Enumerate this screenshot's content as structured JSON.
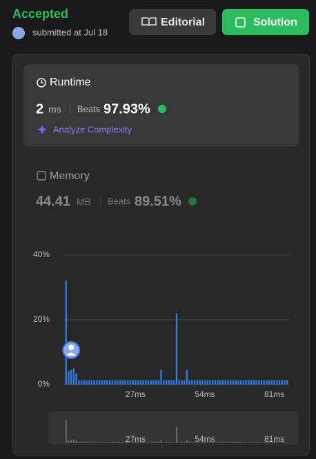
{
  "header": {
    "status": "Accepted",
    "submitted": "submitted at Jul 18",
    "editorial": "Editorial",
    "solution": "Solution"
  },
  "runtime": {
    "title": "Runtime",
    "value": 2,
    "unit": "ms",
    "beats_label": "Beats",
    "beats": "97.93%",
    "analyze": "Analyze Complexity"
  },
  "memory": {
    "title": "Memory",
    "value": 44.41,
    "unit": "MB",
    "beats_label": "Beats",
    "beats": "89.51%"
  },
  "chart_data": {
    "type": "bar",
    "x": [
      0,
      1,
      2,
      3,
      4,
      5,
      6,
      7,
      8,
      9,
      10,
      11,
      12,
      13,
      14,
      15,
      16,
      17,
      18,
      19,
      20,
      21,
      22,
      23,
      24,
      25,
      26,
      27,
      28,
      29,
      30,
      31,
      32,
      33,
      34,
      35,
      36,
      37,
      38,
      39,
      40,
      41,
      42,
      43,
      44,
      45,
      46,
      47,
      48,
      49,
      50,
      51,
      52,
      53,
      54,
      55,
      56,
      57,
      58,
      59,
      60,
      61,
      62,
      63,
      64,
      65,
      66,
      67,
      68,
      69,
      70,
      71,
      72,
      73,
      74,
      75,
      76,
      77,
      78,
      79,
      80,
      81,
      82,
      83,
      84,
      85,
      86
    ],
    "values": [
      32,
      4,
      4.5,
      5,
      3.5,
      1.3,
      1.3,
      1.3,
      1.3,
      1.3,
      1.3,
      1.3,
      1.3,
      1.3,
      1.3,
      1.3,
      1.3,
      1.3,
      1.3,
      1.3,
      1.3,
      1.3,
      1.3,
      1.3,
      1.3,
      1.3,
      1.3,
      1.3,
      1.3,
      1.3,
      1.3,
      1.3,
      1.3,
      1.3,
      1.3,
      1.3,
      1.3,
      4.5,
      1.3,
      1.3,
      1.3,
      1.3,
      1.3,
      22,
      1.3,
      1.3,
      1.3,
      4.5,
      1.3,
      1.3,
      1.3,
      1.3,
      1.3,
      1.3,
      1.3,
      1.3,
      1.3,
      1.3,
      1.3,
      1.3,
      1.3,
      1.3,
      1.3,
      1.3,
      1.3,
      1.3,
      1.3,
      1.3,
      1.3,
      1.3,
      1.3,
      1.3,
      1.3,
      1.3,
      1.3,
      1.3,
      1.3,
      1.3,
      1.3,
      1.3,
      1.3,
      1.3,
      1.3,
      1.3,
      1.3,
      1.3,
      1.3
    ],
    "color": "#2f7de1",
    "xlim": [
      -1,
      87
    ],
    "xticks": [
      {
        "value": 27,
        "label": "27ms"
      },
      {
        "value": 54,
        "label": "54ms"
      },
      {
        "value": 81,
        "label": "81ms"
      }
    ],
    "ylim": [
      0,
      40
    ],
    "yticks": [
      {
        "value": 0,
        "label": "0%"
      },
      {
        "value": 20,
        "label": "20%"
      },
      {
        "value": 40,
        "label": "40%"
      }
    ],
    "grid": true
  }
}
